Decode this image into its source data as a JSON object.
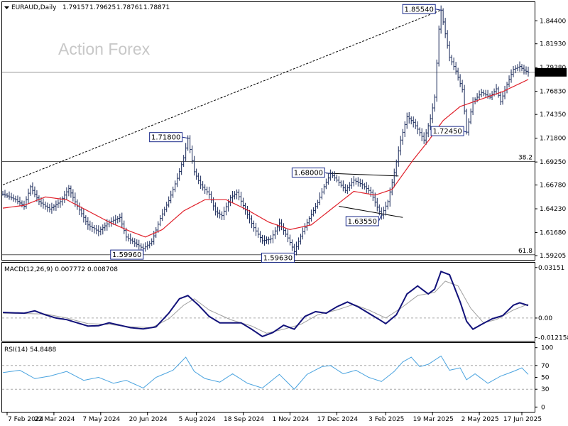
{
  "header": {
    "symbol_label": "EURAUD,Daily",
    "open": "1.79157",
    "high": "1.79625",
    "low": "1.78761",
    "close": "1.78871"
  },
  "watermark": "Action Forex",
  "current_price_tag": "1.78871",
  "fib_levels": [
    {
      "label": "38.2",
      "price": 1.693
    },
    {
      "label": "61.8",
      "price": 1.593
    }
  ],
  "price_callouts": [
    {
      "text": "1.85540",
      "bar": 206
    },
    {
      "text": "1.71800",
      "bar": 87
    },
    {
      "text": "1.68000",
      "bar": 154
    },
    {
      "text": "1.63550",
      "bar": 178
    },
    {
      "text": "1.72450",
      "bar": 218
    },
    {
      "text": "1.59960",
      "bar": 66
    },
    {
      "text": "1.59630",
      "bar": 137
    }
  ],
  "price_axis_ticks": [
    "1.84400",
    "1.81930",
    "1.79380",
    "1.76830",
    "1.74350",
    "1.71800",
    "1.69250",
    "1.66780",
    "1.64230",
    "1.61680",
    "1.59205"
  ],
  "macd_label": "MACD(12,26,9) 0.007772 0.008708",
  "macd_axis_ticks": [
    "0.03151",
    "0.00",
    "-0.012158"
  ],
  "rsi_label": "RSI(14) 54.8488",
  "rsi_axis_ticks": [
    "100",
    "70",
    "50",
    "30",
    "0"
  ],
  "date_ticks": [
    "7 Feb 2024",
    "22 Mar 2024",
    "7 May 2024",
    "20 Jun 2024",
    "5 Aug 2024",
    "18 Sep 2024",
    "1 Nov 2024",
    "17 Dec 2024",
    "3 Feb 2025",
    "19 Mar 2025",
    "2 May 2025",
    "17 Jun 2025"
  ],
  "colors": {
    "candles": "#1a2a5a",
    "ma": "#e0202a",
    "macd": "#12127a",
    "signal": "#a0a0a0",
    "rsi": "#4aa3df",
    "grid": "#888888"
  },
  "chart_data": {
    "type": "candlestick",
    "symbol": "EURAUD",
    "timeframe": "Daily",
    "ylim": [
      1.5875,
      1.864
    ],
    "price_path": [
      [
        0,
        1.658
      ],
      [
        6,
        1.652
      ],
      [
        10,
        1.645
      ],
      [
        13,
        1.666
      ],
      [
        17,
        1.65
      ],
      [
        22,
        1.642
      ],
      [
        27,
        1.65
      ],
      [
        31,
        1.664
      ],
      [
        35,
        1.645
      ],
      [
        40,
        1.625
      ],
      [
        45,
        1.618
      ],
      [
        50,
        1.628
      ],
      [
        55,
        1.633
      ],
      [
        58,
        1.612
      ],
      [
        63,
        1.604
      ],
      [
        66,
        1.5996
      ],
      [
        70,
        1.607
      ],
      [
        74,
        1.632
      ],
      [
        78,
        1.651
      ],
      [
        82,
        1.675
      ],
      [
        85,
        1.697
      ],
      [
        87,
        1.718
      ],
      [
        90,
        1.682
      ],
      [
        93,
        1.668
      ],
      [
        97,
        1.658
      ],
      [
        100,
        1.639
      ],
      [
        103,
        1.635
      ],
      [
        107,
        1.654
      ],
      [
        110,
        1.66
      ],
      [
        114,
        1.641
      ],
      [
        118,
        1.622
      ],
      [
        122,
        1.608
      ],
      [
        126,
        1.61
      ],
      [
        130,
        1.627
      ],
      [
        134,
        1.611
      ],
      [
        137,
        1.5963
      ],
      [
        140,
        1.613
      ],
      [
        144,
        1.632
      ],
      [
        148,
        1.649
      ],
      [
        151,
        1.666
      ],
      [
        154,
        1.68
      ],
      [
        157,
        1.673
      ],
      [
        161,
        1.662
      ],
      [
        165,
        1.673
      ],
      [
        169,
        1.668
      ],
      [
        173,
        1.66
      ],
      [
        176,
        1.644
      ],
      [
        178,
        1.6355
      ],
      [
        181,
        1.65
      ],
      [
        184,
        1.681
      ],
      [
        187,
        1.716
      ],
      [
        190,
        1.741
      ],
      [
        193,
        1.735
      ],
      [
        196,
        1.724
      ],
      [
        198,
        1.716
      ],
      [
        201,
        1.739
      ],
      [
        203,
        1.762
      ],
      [
        205,
        1.835
      ],
      [
        206,
        1.8554
      ],
      [
        208,
        1.83
      ],
      [
        210,
        1.805
      ],
      [
        213,
        1.79
      ],
      [
        216,
        1.77
      ],
      [
        218,
        1.7245
      ],
      [
        221,
        1.757
      ],
      [
        225,
        1.767
      ],
      [
        229,
        1.762
      ],
      [
        232,
        1.771
      ],
      [
        234,
        1.757
      ],
      [
        237,
        1.776
      ],
      [
        240,
        1.792
      ],
      [
        243,
        1.795
      ],
      [
        245,
        1.791
      ],
      [
        247,
        1.7887
      ]
    ],
    "ma_path": [
      [
        0,
        1.643
      ],
      [
        10,
        1.646
      ],
      [
        20,
        1.655
      ],
      [
        30,
        1.652
      ],
      [
        40,
        1.64
      ],
      [
        50,
        1.628
      ],
      [
        60,
        1.618
      ],
      [
        67,
        1.612
      ],
      [
        75,
        1.62
      ],
      [
        85,
        1.64
      ],
      [
        95,
        1.652
      ],
      [
        105,
        1.652
      ],
      [
        115,
        1.641
      ],
      [
        125,
        1.628
      ],
      [
        135,
        1.62
      ],
      [
        145,
        1.625
      ],
      [
        155,
        1.643
      ],
      [
        165,
        1.661
      ],
      [
        175,
        1.657
      ],
      [
        183,
        1.663
      ],
      [
        193,
        1.695
      ],
      [
        200,
        1.715
      ],
      [
        207,
        1.737
      ],
      [
        215,
        1.752
      ],
      [
        225,
        1.76
      ],
      [
        235,
        1.768
      ],
      [
        247,
        1.781
      ]
    ],
    "macd_path": [
      [
        0,
        0.0035
      ],
      [
        10,
        0.003
      ],
      [
        15,
        0.0045
      ],
      [
        20,
        0.002
      ],
      [
        25,
        0.0
      ],
      [
        30,
        -0.001
      ],
      [
        35,
        -0.003
      ],
      [
        40,
        -0.005
      ],
      [
        45,
        -0.0048
      ],
      [
        50,
        -0.003
      ],
      [
        55,
        -0.0045
      ],
      [
        60,
        -0.006
      ],
      [
        66,
        -0.0068
      ],
      [
        72,
        -0.0055
      ],
      [
        78,
        0.003
      ],
      [
        83,
        0.012
      ],
      [
        87,
        0.014
      ],
      [
        92,
        0.008
      ],
      [
        97,
        0.001
      ],
      [
        102,
        -0.003
      ],
      [
        107,
        -0.003
      ],
      [
        112,
        -0.003
      ],
      [
        117,
        -0.007
      ],
      [
        122,
        -0.0115
      ],
      [
        127,
        -0.009
      ],
      [
        132,
        -0.0045
      ],
      [
        137,
        -0.007
      ],
      [
        142,
        0.001
      ],
      [
        147,
        0.004
      ],
      [
        152,
        0.003
      ],
      [
        157,
        0.007
      ],
      [
        162,
        0.01
      ],
      [
        167,
        0.007
      ],
      [
        172,
        0.003
      ],
      [
        177,
        -0.001
      ],
      [
        180,
        -0.0035
      ],
      [
        185,
        0.002
      ],
      [
        190,
        0.015
      ],
      [
        195,
        0.02
      ],
      [
        200,
        0.015
      ],
      [
        203,
        0.018
      ],
      [
        206,
        0.029
      ],
      [
        210,
        0.027
      ],
      [
        215,
        0.01
      ],
      [
        218,
        -0.002
      ],
      [
        221,
        -0.007
      ],
      [
        225,
        -0.004
      ],
      [
        230,
        -0.0005
      ],
      [
        235,
        0.0015
      ],
      [
        240,
        0.008
      ],
      [
        243,
        0.0095
      ],
      [
        247,
        0.0078
      ]
    ],
    "signal_path": [
      [
        0,
        0.003
      ],
      [
        10,
        0.0028
      ],
      [
        20,
        0.0025
      ],
      [
        30,
        0.0
      ],
      [
        40,
        -0.0035
      ],
      [
        50,
        -0.004
      ],
      [
        60,
        -0.0055
      ],
      [
        70,
        -0.006
      ],
      [
        78,
        -0.0005
      ],
      [
        85,
        0.008
      ],
      [
        90,
        0.012
      ],
      [
        97,
        0.005
      ],
      [
        107,
        -0.001
      ],
      [
        117,
        -0.005
      ],
      [
        124,
        -0.0095
      ],
      [
        132,
        -0.007
      ],
      [
        140,
        -0.004
      ],
      [
        148,
        0.002
      ],
      [
        157,
        0.005
      ],
      [
        165,
        0.0085
      ],
      [
        172,
        0.005
      ],
      [
        180,
        0.0
      ],
      [
        187,
        0.006
      ],
      [
        195,
        0.014
      ],
      [
        203,
        0.016
      ],
      [
        208,
        0.023
      ],
      [
        214,
        0.02
      ],
      [
        220,
        0.006
      ],
      [
        226,
        -0.003
      ],
      [
        232,
        -0.001
      ],
      [
        240,
        0.005
      ],
      [
        247,
        0.0087
      ]
    ],
    "rsi_path": [
      [
        0,
        58
      ],
      [
        8,
        62
      ],
      [
        15,
        48
      ],
      [
        22,
        52
      ],
      [
        30,
        60
      ],
      [
        38,
        45
      ],
      [
        45,
        50
      ],
      [
        52,
        40
      ],
      [
        58,
        45
      ],
      [
        66,
        32
      ],
      [
        72,
        50
      ],
      [
        80,
        62
      ],
      [
        86,
        84
      ],
      [
        90,
        60
      ],
      [
        95,
        48
      ],
      [
        102,
        42
      ],
      [
        108,
        56
      ],
      [
        115,
        40
      ],
      [
        122,
        32
      ],
      [
        130,
        55
      ],
      [
        137,
        30
      ],
      [
        143,
        55
      ],
      [
        150,
        68
      ],
      [
        154,
        70
      ],
      [
        160,
        56
      ],
      [
        166,
        62
      ],
      [
        172,
        50
      ],
      [
        178,
        43
      ],
      [
        184,
        60
      ],
      [
        188,
        76
      ],
      [
        192,
        84
      ],
      [
        196,
        68
      ],
      [
        200,
        72
      ],
      [
        206,
        86
      ],
      [
        210,
        62
      ],
      [
        215,
        66
      ],
      [
        218,
        46
      ],
      [
        222,
        56
      ],
      [
        228,
        40
      ],
      [
        234,
        52
      ],
      [
        240,
        60
      ],
      [
        244,
        66
      ],
      [
        247,
        55
      ]
    ]
  }
}
